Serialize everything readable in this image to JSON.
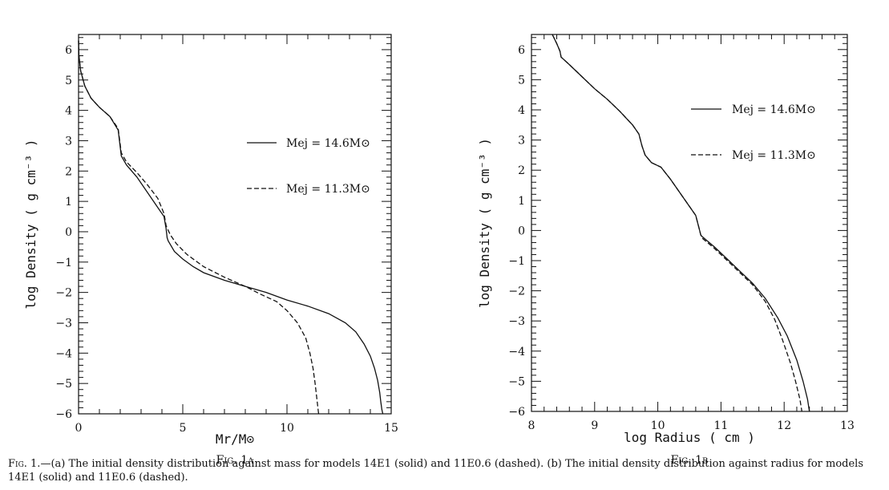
{
  "chart_data": [
    {
      "type": "line",
      "figure_label": "Fig. 1a",
      "xlabel": "Mr/M⊙",
      "ylabel": "log Density ( g cm⁻³ )",
      "xlim": [
        0,
        15
      ],
      "ylim": [
        -6,
        6.5
      ],
      "x_ticks": [
        "0",
        "5",
        "10",
        "15"
      ],
      "y_ticks": [
        "−6",
        "−5",
        "−4",
        "−3",
        "−2",
        "−1",
        "0",
        "1",
        "2",
        "3",
        "4",
        "5",
        "6"
      ],
      "legend_position": "right",
      "series": [
        {
          "name": "Mej = 14.6M⊙",
          "style": "solid",
          "x": [
            0,
            0.02,
            0.1,
            0.3,
            0.6,
            1.0,
            1.5,
            1.9,
            2.05,
            2.3,
            2.8,
            3.3,
            3.8,
            4.1,
            4.2,
            4.25,
            4.3,
            4.6,
            5.0,
            5.5,
            6.0,
            7.0,
            8.0,
            9.0,
            10.0,
            11.0,
            12.0,
            12.8,
            13.3,
            13.7,
            14.0,
            14.2,
            14.35,
            14.45,
            14.5,
            14.55,
            14.58,
            14.6
          ],
          "y": [
            6.3,
            5.8,
            5.3,
            4.8,
            4.4,
            4.1,
            3.8,
            3.35,
            2.5,
            2.2,
            1.8,
            1.3,
            0.8,
            0.5,
            0.1,
            -0.2,
            -0.3,
            -0.65,
            -0.9,
            -1.15,
            -1.35,
            -1.6,
            -1.8,
            -2.0,
            -2.25,
            -2.45,
            -2.7,
            -3.0,
            -3.3,
            -3.7,
            -4.1,
            -4.5,
            -4.9,
            -5.3,
            -5.6,
            -5.85,
            -5.95,
            -6.0
          ]
        },
        {
          "name": "Mej = 11.3M⊙",
          "style": "dashed",
          "x": [
            0,
            0.02,
            0.1,
            0.3,
            0.6,
            1.0,
            1.5,
            1.9,
            2.05,
            2.3,
            2.8,
            3.3,
            3.8,
            4.1,
            4.2,
            4.4,
            4.7,
            5.2,
            6.0,
            7.0,
            8.0,
            8.7,
            9.5,
            10.0,
            10.5,
            10.9,
            11.1,
            11.25,
            11.35,
            11.45,
            11.5,
            11.52
          ],
          "y": [
            6.3,
            5.8,
            5.3,
            4.8,
            4.4,
            4.1,
            3.8,
            3.4,
            2.6,
            2.3,
            1.95,
            1.55,
            1.1,
            0.6,
            0.2,
            -0.1,
            -0.4,
            -0.75,
            -1.15,
            -1.5,
            -1.8,
            -2.05,
            -2.3,
            -2.6,
            -3.0,
            -3.5,
            -4.0,
            -4.5,
            -5.0,
            -5.6,
            -5.9,
            -6.0
          ]
        }
      ]
    },
    {
      "type": "line",
      "figure_label": "Fig. 1b",
      "xlabel": "log Radius ( cm )",
      "ylabel": "log Density ( g cm⁻³ )",
      "xlim": [
        8,
        13
      ],
      "ylim": [
        -6,
        6.5
      ],
      "x_ticks": [
        "8",
        "9",
        "10",
        "11",
        "12",
        "13"
      ],
      "y_ticks": [
        "−6",
        "−5",
        "−4",
        "−3",
        "−2",
        "−1",
        "0",
        "1",
        "2",
        "3",
        "4",
        "5",
        "6"
      ],
      "legend_position": "right",
      "series": [
        {
          "name": "Mej = 14.6M⊙",
          "style": "solid",
          "x": [
            8.33,
            8.4,
            8.45,
            8.47,
            8.6,
            8.8,
            9.0,
            9.2,
            9.4,
            9.6,
            9.7,
            9.75,
            9.8,
            9.9,
            10.0,
            10.05,
            10.2,
            10.4,
            10.6,
            10.65,
            10.68,
            10.7,
            10.9,
            11.1,
            11.3,
            11.5,
            11.7,
            11.9,
            12.05,
            12.2,
            12.3,
            12.37,
            12.4
          ],
          "y": [
            6.5,
            6.2,
            5.95,
            5.75,
            5.5,
            5.1,
            4.7,
            4.35,
            3.95,
            3.5,
            3.2,
            2.8,
            2.5,
            2.25,
            2.15,
            2.1,
            1.7,
            1.1,
            0.5,
            0.1,
            -0.15,
            -0.2,
            -0.55,
            -0.95,
            -1.35,
            -1.75,
            -2.25,
            -2.9,
            -3.5,
            -4.3,
            -5.0,
            -5.6,
            -6.0
          ]
        },
        {
          "name": "Mej = 11.3M⊙",
          "style": "dashed",
          "x": [
            8.33,
            8.4,
            8.45,
            8.47,
            8.6,
            8.8,
            9.0,
            9.2,
            9.4,
            9.6,
            9.7,
            9.75,
            9.8,
            9.9,
            10.0,
            10.05,
            10.2,
            10.4,
            10.6,
            10.65,
            10.68,
            10.7,
            10.9,
            11.1,
            11.3,
            11.5,
            11.7,
            11.85,
            11.97,
            12.1,
            12.18,
            12.25,
            12.28
          ],
          "y": [
            6.5,
            6.2,
            5.95,
            5.75,
            5.5,
            5.1,
            4.7,
            4.35,
            3.95,
            3.5,
            3.2,
            2.8,
            2.5,
            2.25,
            2.15,
            2.1,
            1.7,
            1.1,
            0.5,
            0.1,
            -0.15,
            -0.25,
            -0.6,
            -1.0,
            -1.4,
            -1.8,
            -2.35,
            -2.95,
            -3.6,
            -4.4,
            -5.0,
            -5.6,
            -6.0
          ]
        }
      ]
    }
  ],
  "caption": {
    "prefix": "Fig. 1.",
    "text": "—(a) The initial density distribution against mass for models 14E1 (solid) and 11E0.6 (dashed). (b) The initial density distribution against radius for models 14E1 (solid) and 11E0.6 (dashed)."
  },
  "legend_symbol": {
    "base": "M",
    "sub": "ej",
    "sun": "⊙"
  }
}
